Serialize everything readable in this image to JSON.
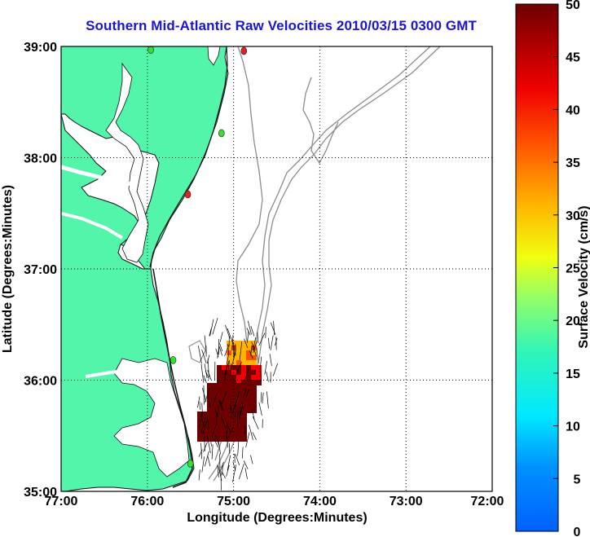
{
  "title": "Southern Mid-Atlantic Raw Velocities 2010/03/15 0300 GMT",
  "map": {
    "xlabel": "Longitude (Degrees:Minutes)",
    "ylabel": "Latitude (Degrees:Minutes)",
    "lon_ticks": [
      "77:00",
      "76:00",
      "75:00",
      "74:00",
      "73:00",
      "72:00"
    ],
    "lat_ticks": [
      "39:00",
      "38:00",
      "37:00",
      "36:00",
      "35:00"
    ],
    "lon_range": [
      -77,
      -72
    ],
    "lat_range": [
      35,
      39
    ],
    "grid": true,
    "colors": {
      "land": "#52f5aa",
      "coast_line": "#000000",
      "bathymetry": "#8c8c8c",
      "station_green": "#33e033",
      "station_red": "#e82020"
    },
    "stations": [
      {
        "lon": -74.88,
        "lat": 38.96,
        "status": "red"
      },
      {
        "lon": -75.96,
        "lat": 38.97,
        "status": "green"
      },
      {
        "lon": -75.14,
        "lat": 38.22,
        "status": "green"
      },
      {
        "lon": -75.53,
        "lat": 37.67,
        "status": "red"
      },
      {
        "lon": -75.7,
        "lat": 36.18,
        "status": "green"
      },
      {
        "lon": -75.5,
        "lat": 35.25,
        "status": "green"
      }
    ]
  },
  "colorbar": {
    "label": "Surface Velocity (cm/s)",
    "ticks": [
      "50",
      "45",
      "40",
      "35",
      "30",
      "25",
      "20",
      "15",
      "10",
      "5",
      "0"
    ],
    "min": 0,
    "max": 50
  }
}
